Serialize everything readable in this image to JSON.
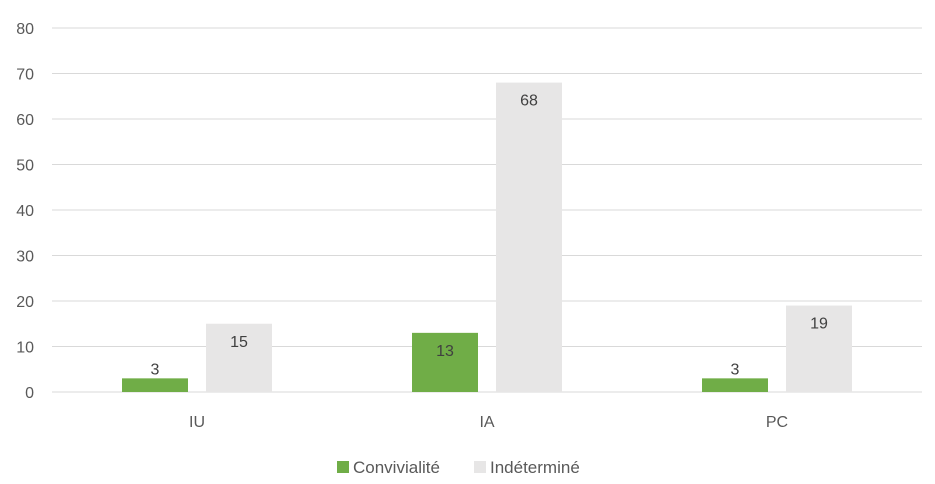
{
  "chart_data": {
    "type": "bar",
    "categories": [
      "IU",
      "IA",
      "PC"
    ],
    "series": [
      {
        "name": "Convivialité",
        "values": [
          3,
          13,
          3
        ],
        "color": "#70ad47"
      },
      {
        "name": "Indéterminé",
        "values": [
          15,
          68,
          19
        ],
        "color": "#e7e6e6"
      }
    ],
    "ylim": [
      0,
      80
    ],
    "yticks": [
      0,
      10,
      20,
      30,
      40,
      50,
      60,
      70,
      80
    ],
    "grid": true,
    "legend": "bottom",
    "data_labels": true
  }
}
